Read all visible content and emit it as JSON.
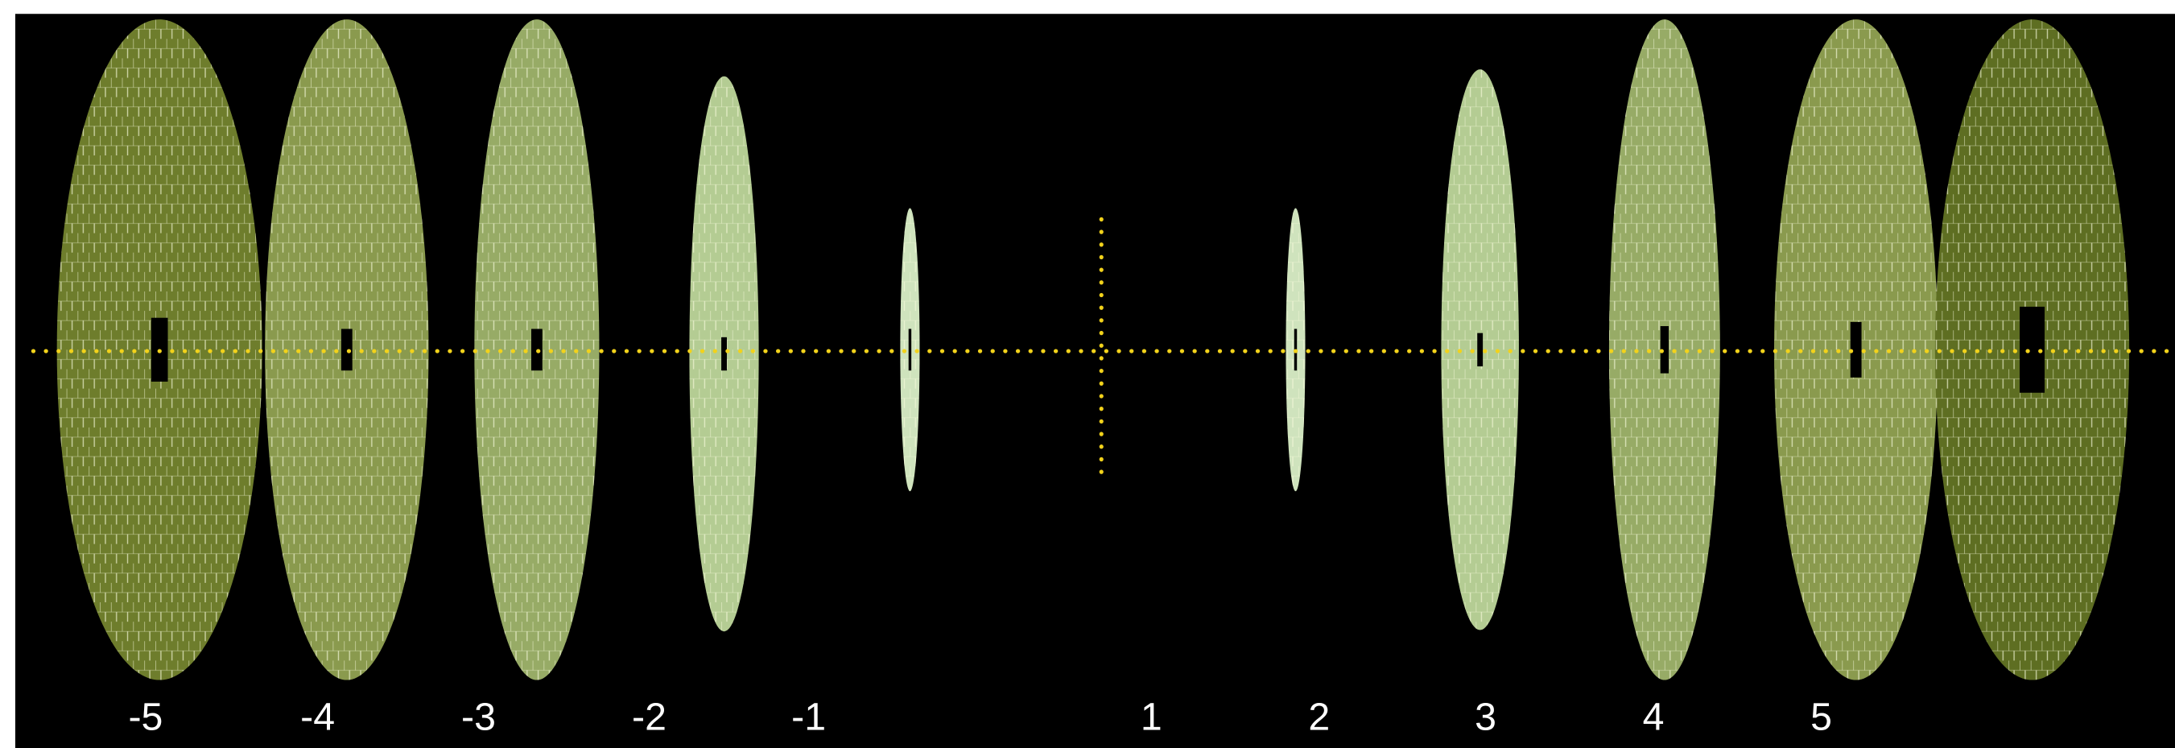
{
  "labels": [
    "-5",
    "-4",
    "-3",
    "-2",
    "-1",
    "1",
    "2",
    "3",
    "4",
    "5"
  ]
}
